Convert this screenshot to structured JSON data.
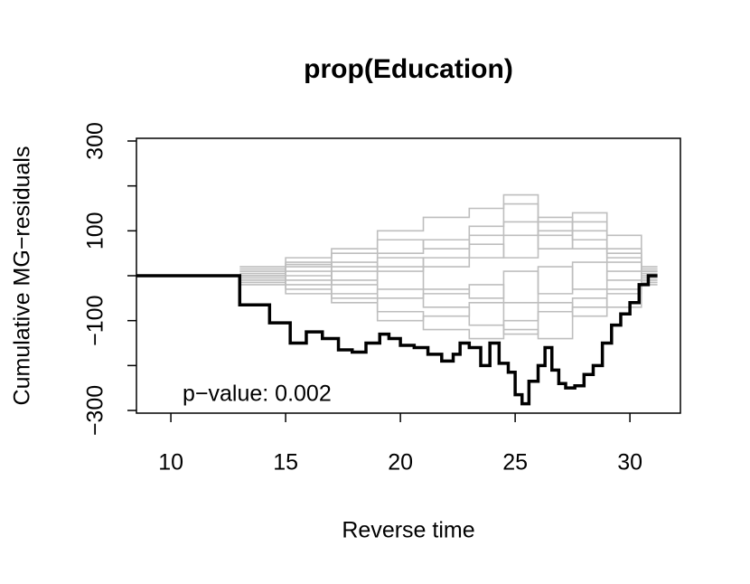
{
  "chart_data": {
    "type": "step",
    "title": "prop(Education)",
    "x_label": "Reverse time",
    "y_label": "Cumulative MG−residuals",
    "annotation": "p−value: 0.002",
    "xlim": [
      8.5,
      32.2
    ],
    "ylim": [
      -306,
      306
    ],
    "xticks": [
      10,
      15,
      20,
      25,
      30
    ],
    "yticks": [
      300,
      {
        "value": 200,
        "label": null
      },
      100,
      {
        "value": 0,
        "label": null
      },
      {
        "value": -100,
        "label": "−100"
      },
      {
        "value": -200,
        "label": null
      },
      {
        "value": -300,
        "label": "−300"
      }
    ],
    "series": [
      {
        "color": "#bebebe",
        "x": [
          13,
          15,
          17,
          19,
          21,
          23,
          24.5,
          26,
          27.5,
          29,
          30.5,
          31.2
        ],
        "values": [
          20,
          40,
          60,
          100,
          130,
          150,
          180,
          120,
          60,
          30,
          10,
          10
        ]
      },
      {
        "color": "#bebebe",
        "x": [
          13,
          15,
          17,
          19,
          21,
          23,
          24.5,
          26,
          27.5,
          29,
          30.5,
          31.2
        ],
        "values": [
          -10,
          -30,
          -50,
          -80,
          -120,
          -140,
          -100,
          -60,
          -90,
          -40,
          -10,
          -10
        ]
      },
      {
        "color": "#bebebe",
        "x": [
          13,
          15,
          17,
          19,
          21,
          23,
          24.5,
          26,
          27.5,
          29,
          30.5,
          31.2
        ],
        "values": [
          10,
          30,
          20,
          50,
          80,
          40,
          90,
          130,
          100,
          50,
          0,
          0
        ]
      },
      {
        "color": "#bebebe",
        "x": [
          13,
          15,
          17,
          19,
          21,
          23,
          24.5,
          26,
          27.5,
          29,
          30.5,
          31.2
        ],
        "values": [
          -20,
          -10,
          -40,
          -30,
          -70,
          -110,
          -130,
          -80,
          -50,
          -70,
          -20,
          -20
        ]
      },
      {
        "color": "#bebebe",
        "x": [
          13,
          15,
          17,
          19,
          21,
          23,
          24.5,
          26,
          27.5,
          29,
          30.5,
          31.2
        ],
        "values": [
          5,
          20,
          50,
          80,
          60,
          110,
          160,
          90,
          120,
          60,
          10,
          10
        ]
      },
      {
        "color": "#bebebe",
        "x": [
          13,
          15,
          17,
          19,
          21,
          23,
          24.5,
          26,
          27.5,
          29,
          30.5,
          31.2
        ],
        "values": [
          -5,
          -40,
          -60,
          -100,
          -90,
          -60,
          -120,
          -140,
          -70,
          -30,
          -5,
          -5
        ]
      },
      {
        "color": "#bebebe",
        "x": [
          13,
          15,
          17,
          19,
          21,
          23,
          24.5,
          26,
          27.5,
          29,
          30.5,
          31.2
        ],
        "values": [
          15,
          0,
          30,
          10,
          40,
          70,
          40,
          100,
          80,
          40,
          20,
          20
        ]
      },
      {
        "color": "#bebebe",
        "x": [
          13,
          15,
          17,
          19,
          21,
          23,
          24.5,
          26,
          27.5,
          29,
          30.5,
          31.2
        ],
        "values": [
          -15,
          10,
          -20,
          20,
          -30,
          -50,
          10,
          -40,
          30,
          -10,
          5,
          5
        ]
      },
      {
        "color": "#bebebe",
        "x": [
          13,
          15,
          17,
          19,
          21,
          23,
          24.5,
          26,
          27.5,
          29,
          30.5,
          31.2
        ],
        "values": [
          0,
          25,
          -10,
          40,
          20,
          90,
          120,
          60,
          140,
          90,
          15,
          15
        ]
      },
      {
        "color": "#bebebe",
        "x": [
          13,
          15,
          17,
          19,
          21,
          23,
          24.5,
          26,
          27.5,
          29,
          30.5,
          31.2
        ],
        "values": [
          0,
          -20,
          10,
          -50,
          -40,
          -20,
          -60,
          20,
          -30,
          10,
          -15,
          -15
        ]
      },
      {
        "color": "#000000",
        "x": [
          8.5,
          13.0,
          14.3,
          15.2,
          15.9,
          16.6,
          17.3,
          17.9,
          18.5,
          19.1,
          19.5,
          20.0,
          20.6,
          21.2,
          21.8,
          22.3,
          22.6,
          23.0,
          23.5,
          23.9,
          24.3,
          24.7,
          25.0,
          25.3,
          25.6,
          26.0,
          26.3,
          26.6,
          26.9,
          27.2,
          27.6,
          28.0,
          28.4,
          28.8,
          29.2,
          29.6,
          30.0,
          30.4,
          30.8,
          31.2
        ],
        "values": [
          0,
          -65,
          -105,
          -150,
          -125,
          -140,
          -165,
          -170,
          -150,
          -130,
          -140,
          -155,
          -160,
          -175,
          -190,
          -175,
          -150,
          -160,
          -200,
          -150,
          -195,
          -215,
          -265,
          -285,
          -235,
          -200,
          -160,
          -210,
          -240,
          -250,
          -245,
          -220,
          -200,
          -150,
          -110,
          -85,
          -60,
          -20,
          0,
          0
        ]
      }
    ]
  }
}
